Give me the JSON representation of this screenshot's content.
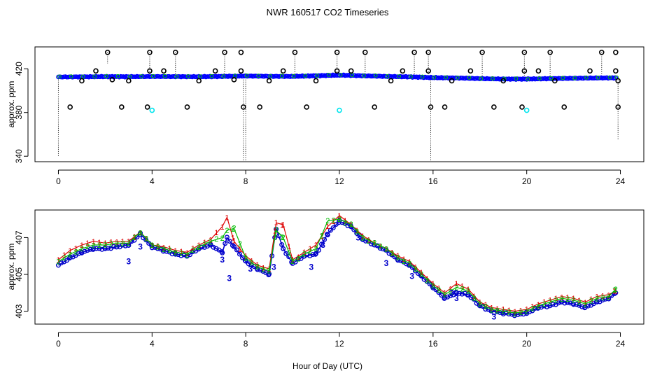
{
  "figure": {
    "title": "NWR  160517  CO2 Timeseries",
    "xlabel": "Hour of Day (UTC)"
  },
  "chart_data": [
    {
      "type": "scatter",
      "ylabel": "approx. ppm",
      "xlim": [
        -1,
        25
      ],
      "ylim": [
        335,
        440
      ],
      "xticks": [
        0,
        4,
        8,
        12,
        16,
        20,
        24
      ],
      "xtick_labels": [
        "0",
        "4",
        "8",
        "12",
        "16",
        "20",
        "24"
      ],
      "yticks": [
        340,
        380,
        420
      ],
      "ytick_labels": [
        "340",
        "380",
        "420"
      ],
      "grid": false,
      "colors": {
        "main": "#0000ff",
        "series2": "#00cc00",
        "outlier": "#000000",
        "cyan": "#00e5ee",
        "drop": "#000000"
      },
      "main_series": {
        "name": "",
        "x": [
          0,
          1,
          2,
          3,
          4,
          5,
          6,
          7,
          8,
          9,
          10,
          11,
          12,
          13,
          14,
          15,
          16,
          17,
          18,
          19,
          20,
          21,
          22,
          23,
          23.8
        ],
        "y": [
          412.5,
          412.6,
          412.8,
          412.7,
          412.9,
          412.8,
          412.7,
          413.0,
          413.4,
          413.1,
          413.0,
          413.6,
          414.2,
          413.6,
          413.0,
          412.6,
          411.9,
          411.6,
          411.0,
          410.6,
          410.6,
          411.0,
          411.3,
          411.6,
          411.7
        ]
      },
      "outliers_high": [
        {
          "x": 2.1,
          "y": 435
        },
        {
          "x": 3.9,
          "y": 435
        },
        {
          "x": 5.0,
          "y": 435
        },
        {
          "x": 7.1,
          "y": 435
        },
        {
          "x": 7.8,
          "y": 435
        },
        {
          "x": 10.1,
          "y": 435
        },
        {
          "x": 11.9,
          "y": 435
        },
        {
          "x": 13.1,
          "y": 435
        },
        {
          "x": 15.2,
          "y": 435
        },
        {
          "x": 15.8,
          "y": 435
        },
        {
          "x": 18.1,
          "y": 435
        },
        {
          "x": 19.9,
          "y": 435
        },
        {
          "x": 21.0,
          "y": 435
        },
        {
          "x": 23.2,
          "y": 435
        },
        {
          "x": 23.8,
          "y": 435
        },
        {
          "x": 1.6,
          "y": 418
        },
        {
          "x": 3.9,
          "y": 418
        },
        {
          "x": 4.5,
          "y": 418
        },
        {
          "x": 6.7,
          "y": 418
        },
        {
          "x": 7.8,
          "y": 418
        },
        {
          "x": 9.6,
          "y": 418
        },
        {
          "x": 11.9,
          "y": 418
        },
        {
          "x": 12.5,
          "y": 418
        },
        {
          "x": 14.7,
          "y": 418
        },
        {
          "x": 15.8,
          "y": 418
        },
        {
          "x": 17.6,
          "y": 418
        },
        {
          "x": 19.9,
          "y": 418
        },
        {
          "x": 20.5,
          "y": 418
        },
        {
          "x": 22.7,
          "y": 418
        },
        {
          "x": 23.8,
          "y": 418
        }
      ],
      "outliers_low": [
        {
          "x": 0.5,
          "y": 385
        },
        {
          "x": 2.7,
          "y": 385
        },
        {
          "x": 3.8,
          "y": 385
        },
        {
          "x": 5.5,
          "y": 385
        },
        {
          "x": 7.9,
          "y": 385
        },
        {
          "x": 8.6,
          "y": 385
        },
        {
          "x": 10.6,
          "y": 385
        },
        {
          "x": 13.5,
          "y": 385
        },
        {
          "x": 15.9,
          "y": 385
        },
        {
          "x": 16.5,
          "y": 385
        },
        {
          "x": 18.6,
          "y": 385
        },
        {
          "x": 19.8,
          "y": 385
        },
        {
          "x": 21.6,
          "y": 385
        },
        {
          "x": 23.9,
          "y": 385
        },
        {
          "x": 1.0,
          "y": 409
        },
        {
          "x": 2.3,
          "y": 410
        },
        {
          "x": 3.0,
          "y": 409
        },
        {
          "x": 6.0,
          "y": 409
        },
        {
          "x": 7.5,
          "y": 410
        },
        {
          "x": 9.0,
          "y": 409
        },
        {
          "x": 11.0,
          "y": 409
        },
        {
          "x": 14.2,
          "y": 409
        },
        {
          "x": 16.8,
          "y": 409
        },
        {
          "x": 19.0,
          "y": 409
        },
        {
          "x": 21.2,
          "y": 409
        },
        {
          "x": 23.9,
          "y": 409
        }
      ],
      "cyan_points": [
        {
          "x": 4.0,
          "y": 382
        },
        {
          "x": 12.0,
          "y": 382
        },
        {
          "x": 20.0,
          "y": 382
        }
      ],
      "drop_lines": [
        {
          "x": 0.0,
          "y0": 412,
          "y1": 340
        },
        {
          "x": 7.9,
          "y0": 412,
          "y1": 335
        },
        {
          "x": 8.0,
          "y0": 412,
          "y1": 335
        },
        {
          "x": 15.9,
          "y0": 412,
          "y1": 335
        },
        {
          "x": 23.9,
          "y0": 412,
          "y1": 355
        },
        {
          "x": 2.1,
          "y0": 435,
          "y1": 425
        },
        {
          "x": 3.9,
          "y0": 435,
          "y1": 412
        },
        {
          "x": 5.0,
          "y0": 435,
          "y1": 412
        },
        {
          "x": 7.1,
          "y0": 435,
          "y1": 412
        },
        {
          "x": 10.1,
          "y0": 435,
          "y1": 412
        },
        {
          "x": 11.9,
          "y0": 435,
          "y1": 412
        },
        {
          "x": 13.1,
          "y0": 435,
          "y1": 412
        },
        {
          "x": 15.2,
          "y0": 435,
          "y1": 412
        },
        {
          "x": 15.8,
          "y0": 435,
          "y1": 412
        },
        {
          "x": 18.1,
          "y0": 435,
          "y1": 412
        },
        {
          "x": 19.9,
          "y0": 435,
          "y1": 412
        },
        {
          "x": 21.0,
          "y0": 435,
          "y1": 412
        },
        {
          "x": 23.2,
          "y0": 435,
          "y1": 412
        }
      ]
    },
    {
      "type": "line",
      "ylabel": "approx. ppm",
      "xlim": [
        -1,
        25
      ],
      "ylim": [
        402.3,
        408.5
      ],
      "xticks": [
        0,
        4,
        8,
        12,
        16,
        20,
        24
      ],
      "xtick_labels": [
        "0",
        "4",
        "8",
        "12",
        "16",
        "20",
        "24"
      ],
      "yticks": [
        403,
        405,
        407
      ],
      "ytick_labels": [
        "403",
        "405",
        "407"
      ],
      "grid": false,
      "series": [
        {
          "name": "",
          "marker": "o",
          "color": "#0000cc",
          "x": [
            0,
            0.5,
            1.0,
            1.5,
            2.0,
            2.5,
            3.0,
            3.5,
            4.0,
            4.5,
            5.0,
            5.5,
            6.0,
            6.5,
            7.0,
            7.2,
            7.5,
            8.0,
            8.5,
            9.0,
            9.3,
            9.6,
            10.0,
            10.5,
            11.0,
            11.5,
            12.0,
            12.5,
            13.0,
            13.5,
            14.0,
            14.5,
            15.0,
            15.5,
            16.0,
            16.5,
            17.0,
            17.5,
            18.0,
            18.5,
            19.0,
            19.5,
            20.0,
            20.5,
            21.0,
            21.5,
            22.0,
            22.5,
            23.0,
            23.5,
            23.8
          ],
          "y": [
            405.5,
            405.9,
            406.2,
            406.4,
            406.4,
            406.5,
            406.6,
            407.2,
            406.5,
            406.3,
            406.1,
            406.0,
            406.4,
            406.6,
            406.2,
            407.0,
            406.5,
            405.7,
            405.3,
            405.0,
            407.5,
            406.4,
            405.6,
            406.0,
            406.1,
            407.2,
            407.9,
            407.6,
            406.9,
            406.6,
            406.3,
            405.8,
            405.5,
            404.9,
            404.3,
            403.7,
            404.0,
            403.9,
            403.3,
            403.0,
            402.9,
            402.8,
            402.9,
            403.2,
            403.3,
            403.5,
            403.4,
            403.2,
            403.5,
            403.7,
            404.0
          ]
        },
        {
          "name": "",
          "marker": "1",
          "color": "#dd0000",
          "x": [
            0,
            0.5,
            1.0,
            1.5,
            2.0,
            2.5,
            3.0,
            3.5,
            4.0,
            4.5,
            5.0,
            5.5,
            6.0,
            6.5,
            7.0,
            7.2,
            7.5,
            8.0,
            8.5,
            9.0,
            9.3,
            9.6,
            10.0,
            10.5,
            11.0,
            11.5,
            12.0,
            12.5,
            13.0,
            13.5,
            14.0,
            14.5,
            15.0,
            15.5,
            16.0,
            16.5,
            17.0,
            17.5,
            18.0,
            18.5,
            19.0,
            19.5,
            20.0,
            20.5,
            21.0,
            21.5,
            22.0,
            22.5,
            23.0,
            23.5,
            23.8
          ],
          "y": [
            405.8,
            406.3,
            406.6,
            406.8,
            406.7,
            406.8,
            406.8,
            407.3,
            406.6,
            406.5,
            406.3,
            406.2,
            406.6,
            406.9,
            407.6,
            408.1,
            406.8,
            406.0,
            405.5,
            405.3,
            407.8,
            407.7,
            405.8,
            406.2,
            406.6,
            407.6,
            408.2,
            407.7,
            407.1,
            406.7,
            406.4,
            406.0,
            405.7,
            405.1,
            404.5,
            404.0,
            404.5,
            404.2,
            403.5,
            403.2,
            403.1,
            403.0,
            403.1,
            403.4,
            403.6,
            403.8,
            403.7,
            403.5,
            403.8,
            403.9,
            404.1
          ]
        },
        {
          "name": "",
          "marker": "2",
          "color": "#00bb00",
          "x": [
            0,
            0.5,
            1.0,
            1.5,
            2.0,
            2.5,
            3.0,
            3.5,
            4.0,
            4.5,
            5.0,
            5.5,
            6.0,
            6.5,
            7.0,
            7.2,
            7.5,
            8.0,
            8.5,
            9.0,
            9.3,
            9.6,
            10.0,
            10.5,
            11.0,
            11.5,
            12.0,
            12.5,
            13.0,
            13.5,
            14.0,
            14.5,
            15.0,
            15.5,
            16.0,
            16.5,
            17.0,
            17.5,
            18.0,
            18.5,
            19.0,
            19.5,
            20.0,
            20.5,
            21.0,
            21.5,
            22.0,
            22.5,
            23.0,
            23.5,
            23.8
          ],
          "y": [
            405.7,
            406.1,
            406.4,
            406.6,
            406.6,
            406.7,
            406.7,
            407.3,
            406.6,
            406.4,
            406.2,
            406.1,
            406.5,
            406.8,
            407.0,
            407.4,
            407.5,
            405.9,
            405.4,
            405.2,
            407.4,
            407.0,
            405.7,
            406.1,
            406.4,
            407.9,
            408.0,
            407.7,
            407.0,
            406.7,
            406.4,
            405.9,
            405.6,
            405.0,
            404.4,
            403.9,
            404.3,
            404.1,
            403.4,
            403.1,
            403.0,
            402.9,
            403.0,
            403.3,
            403.5,
            403.7,
            403.6,
            403.4,
            403.7,
            403.8,
            404.2
          ]
        },
        {
          "name": "",
          "marker": "3",
          "color": "#0000cc",
          "x": [
            3.0,
            3.5,
            7.0,
            7.3,
            8.2,
            9.2,
            10.8,
            11.3,
            12.8,
            14.0,
            15.1,
            16.8,
            17.0,
            18.6
          ],
          "y": [
            405.7,
            406.5,
            405.8,
            404.8,
            405.3,
            405.4,
            405.4,
            406.6,
            407.0,
            405.6,
            404.9,
            404.0,
            403.7,
            402.7
          ]
        }
      ]
    }
  ]
}
